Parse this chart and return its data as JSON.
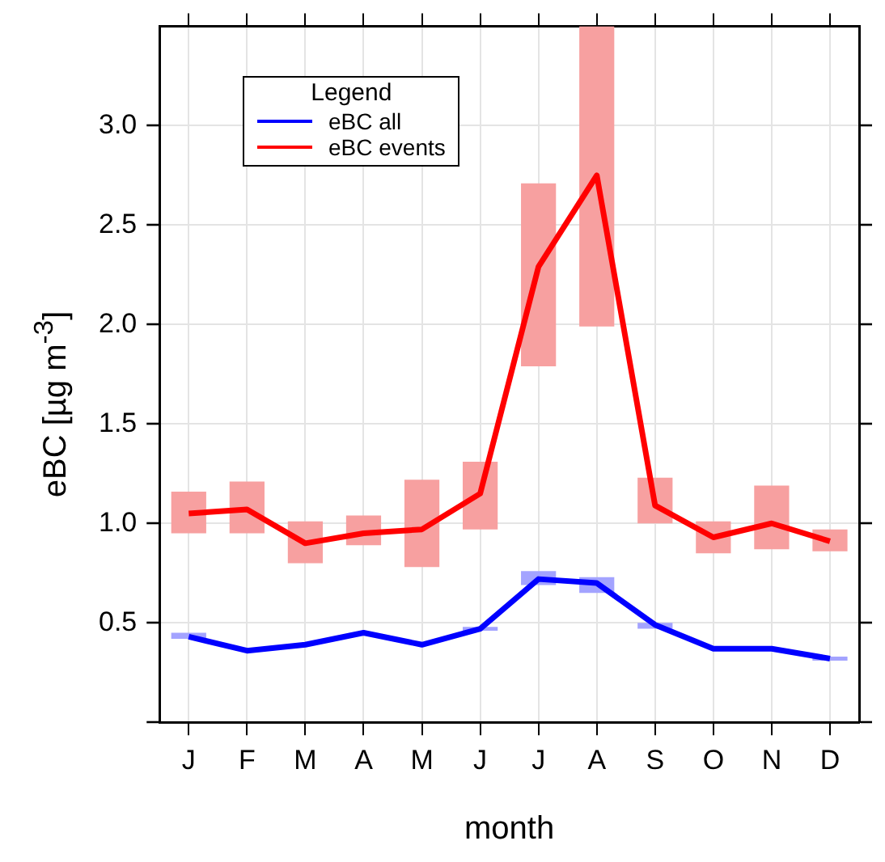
{
  "chart_data": {
    "type": "line",
    "xlabel": "month",
    "ylabel": "eBC [µg m$^{-3}$]",
    "legend_title": "Legend",
    "legend": "top left",
    "grid": true,
    "categories": [
      "J",
      "F",
      "M",
      "A",
      "M",
      "J",
      "J",
      "A",
      "S",
      "O",
      "N",
      "D"
    ],
    "ylim": [
      0,
      3.5
    ],
    "yticks": [
      {
        "value": 0,
        "label": null
      },
      0.5,
      {
        "value": 1,
        "label": "1.0"
      },
      1.5,
      {
        "value": 2,
        "label": "2.0"
      },
      2.5,
      {
        "value": 3,
        "label": "3.0"
      }
    ],
    "series": [
      {
        "name": "eBC all",
        "color": "#0000ff",
        "values": [
          0.43,
          0.36,
          0.39,
          0.45,
          0.39,
          0.47,
          0.72,
          0.7,
          0.49,
          0.37,
          0.37,
          0.32
        ]
      },
      {
        "name": "eBC events",
        "color": "#ff0000",
        "values": [
          1.05,
          1.07,
          0.9,
          0.95,
          0.97,
          1.15,
          2.29,
          2.75,
          1.09,
          0.93,
          1.0,
          0.91
        ]
      },
      {
        "type": "bar",
        "color": "#a3a3ff",
        "base": [
          0.42,
          null,
          null,
          null,
          null,
          0.46,
          0.69,
          0.65,
          0.47,
          null,
          null,
          0.31
        ],
        "values": [
          0.03,
          null,
          null,
          null,
          null,
          0.02,
          0.07,
          0.08,
          0.03,
          null,
          null,
          0.02
        ]
      },
      {
        "type": "bar",
        "color": "#f7a0a0",
        "base": [
          0.95,
          0.95,
          0.8,
          0.89,
          0.78,
          0.97,
          1.79,
          1.99,
          1.0,
          0.85,
          0.87,
          0.86
        ],
        "values": [
          0.21,
          0.26,
          0.21,
          0.15,
          0.44,
          0.34,
          0.92,
          1.51,
          0.23,
          0.16,
          0.32,
          0.11
        ]
      }
    ]
  }
}
